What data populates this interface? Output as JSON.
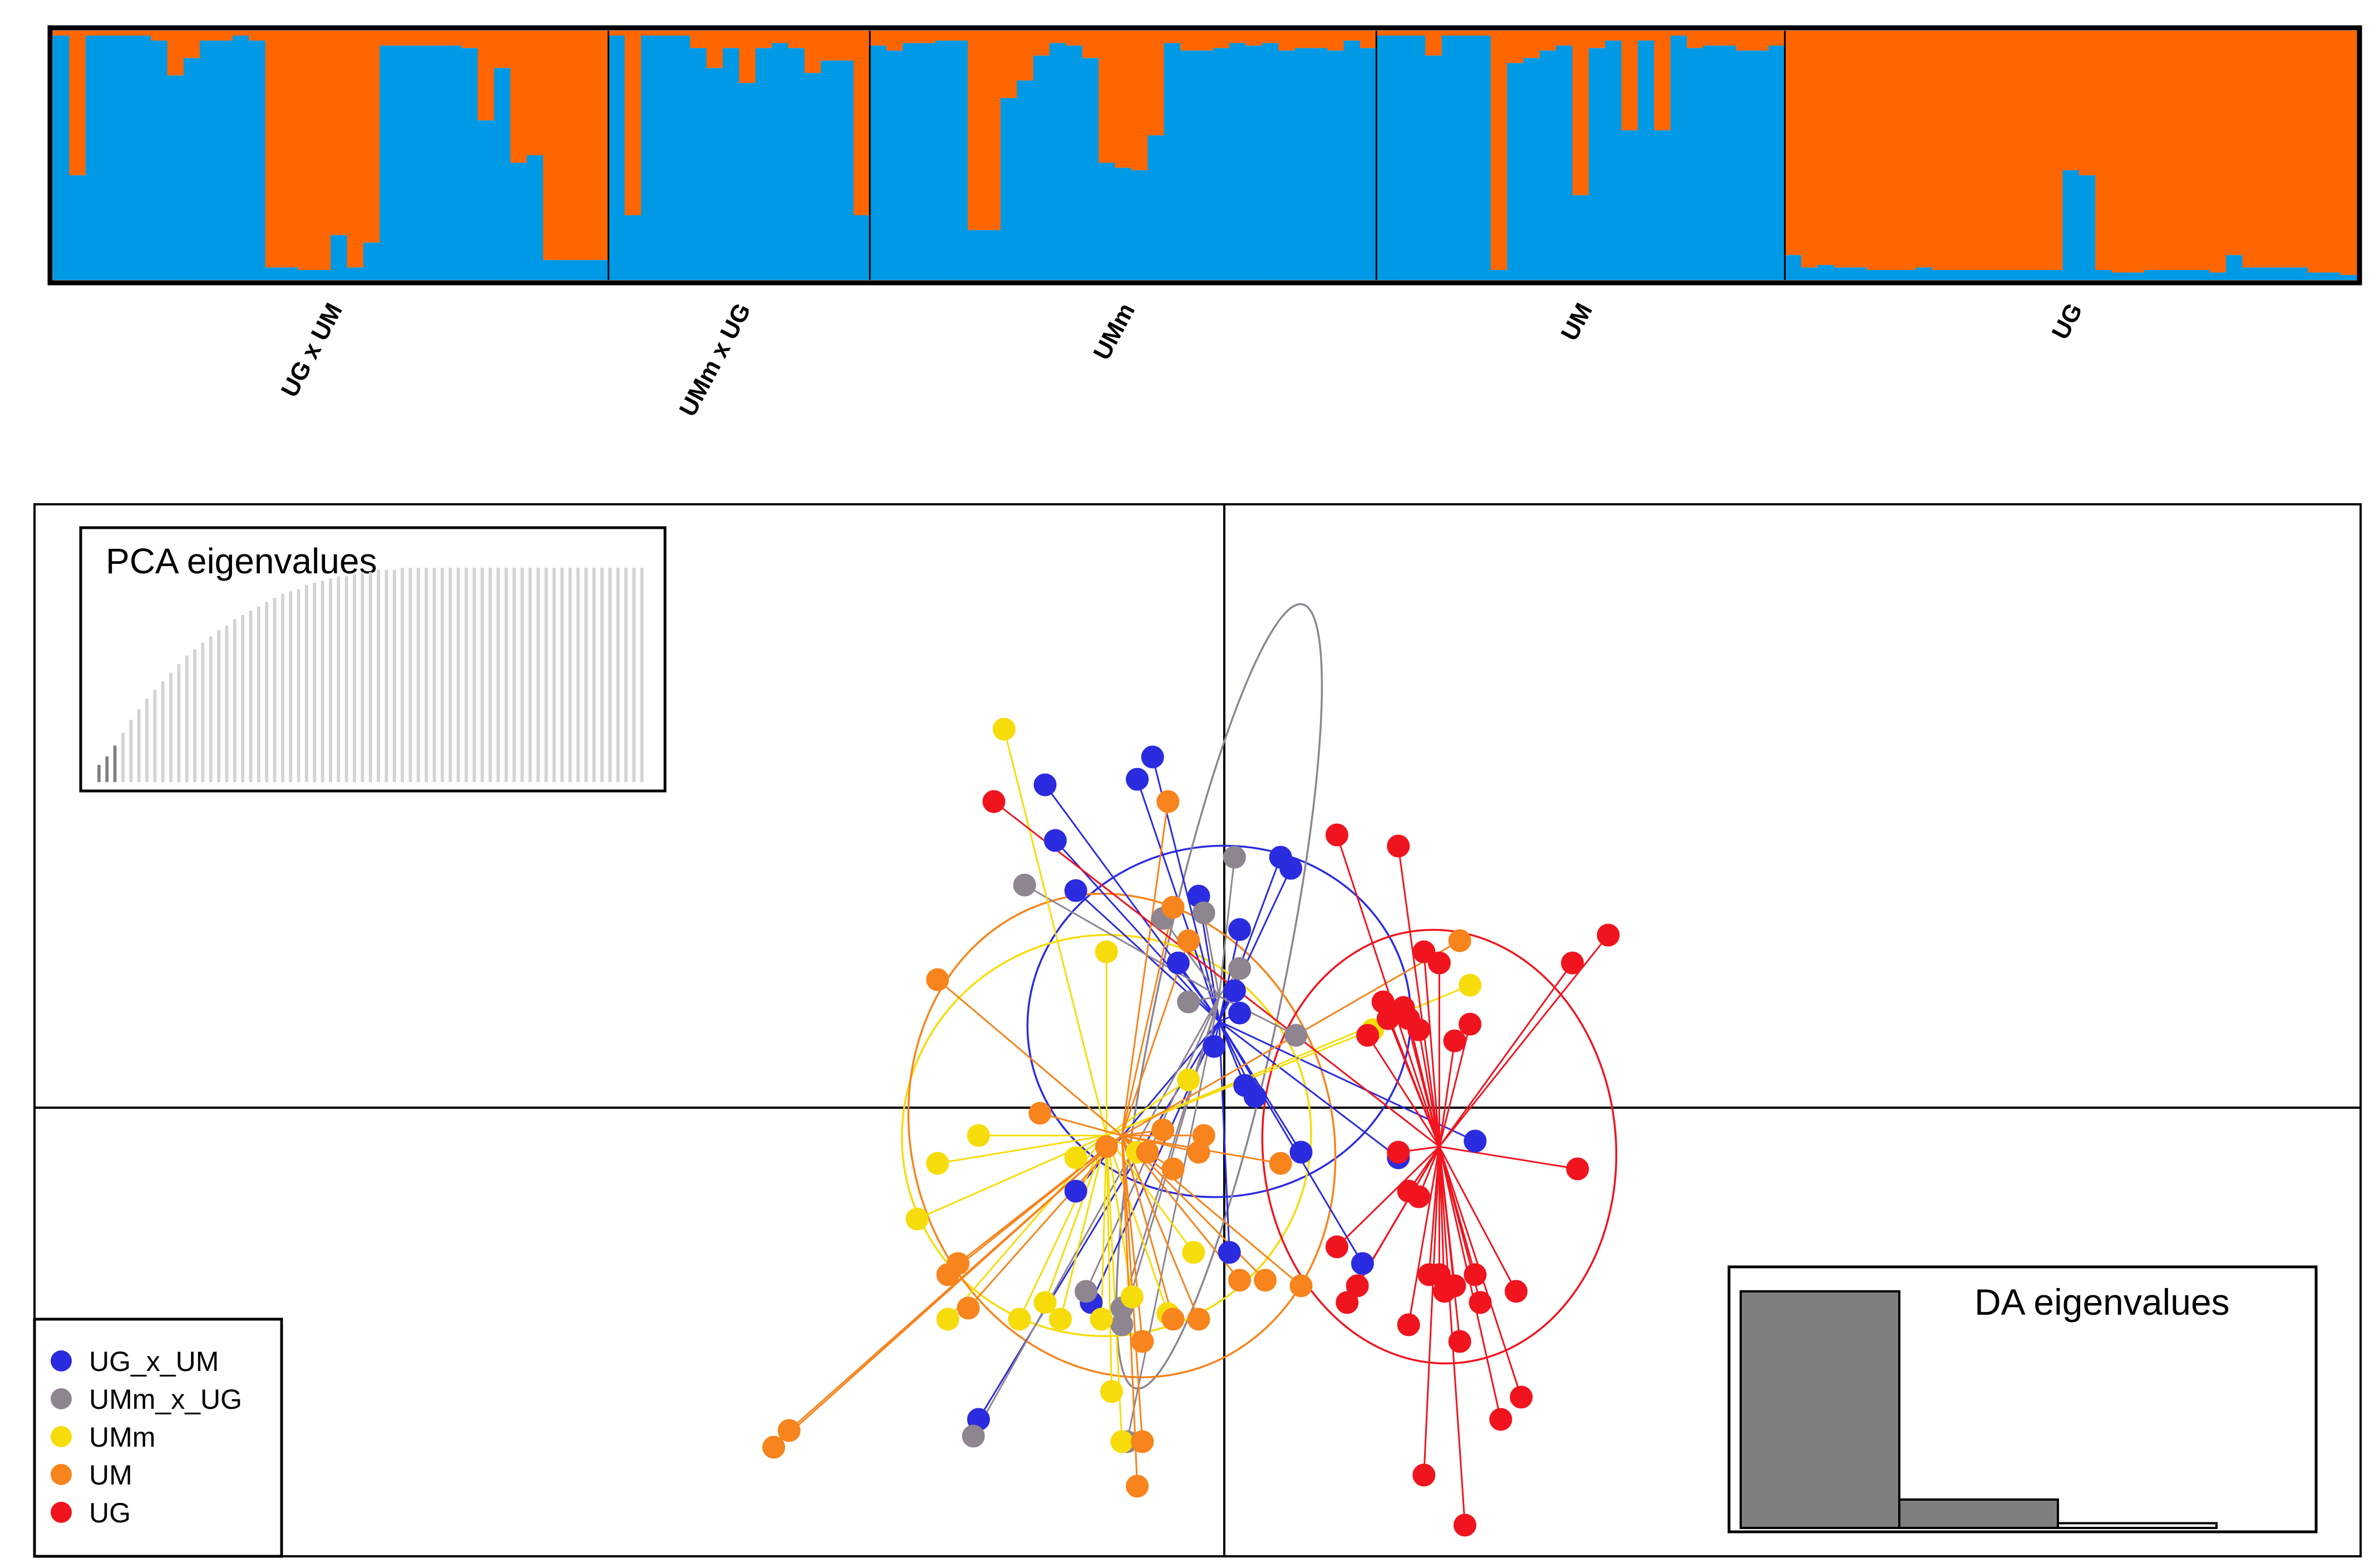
{
  "colors": {
    "cluster_blue": "#0099E6",
    "cluster_orange": "#FF6600",
    "UG_x_UM": "#2B2BE0",
    "UMm_x_UG": "#8E8591",
    "UMm": "#F7DC0B",
    "UM": "#F7841C",
    "UG": "#F0141E",
    "eig_dark": "#7F7F7F",
    "eig_light": "#D3D3D3"
  },
  "chart_data": [
    {
      "type": "bar",
      "subtype": "stacked-admixture",
      "title": "",
      "series": [
        {
          "name": "cluster 1",
          "color_key": "cluster_blue"
        },
        {
          "name": "cluster 2",
          "color_key": "cluster_orange"
        }
      ],
      "ylim": [
        0,
        1
      ],
      "groups": [
        {
          "label": "UG x UM",
          "values": [
            0.98,
            0.42,
            0.98,
            0.98,
            0.98,
            0.98,
            0.96,
            0.82,
            0.89,
            0.96,
            0.96,
            0.98,
            0.96,
            0.05,
            0.05,
            0.04,
            0.04,
            0.18,
            0.05,
            0.15,
            0.94,
            0.94,
            0.94,
            0.94,
            0.94,
            0.93,
            0.64,
            0.85,
            0.47,
            0.5,
            0.08,
            0.08,
            0.08,
            0.08
          ]
        },
        {
          "label": "UMm x UG",
          "values": [
            0.98,
            0.26,
            0.98,
            0.98,
            0.98,
            0.93,
            0.85,
            0.93,
            0.79,
            0.93,
            0.95,
            0.93,
            0.83,
            0.88,
            0.88,
            0.26
          ]
        },
        {
          "label": "UMm",
          "values": [
            0.94,
            0.92,
            0.95,
            0.95,
            0.96,
            0.96,
            0.2,
            0.2,
            0.73,
            0.8,
            0.9,
            0.95,
            0.94,
            0.89,
            0.47,
            0.45,
            0.44,
            0.58,
            0.95,
            0.92,
            0.92,
            0.93,
            0.95,
            0.94,
            0.95,
            0.92,
            0.93,
            0.93,
            0.92,
            0.96,
            0.93
          ]
        },
        {
          "label": "UM",
          "values": [
            0.98,
            0.98,
            0.98,
            0.9,
            0.98,
            0.98,
            0.98,
            0.04,
            0.87,
            0.89,
            0.92,
            0.94,
            0.34,
            0.93,
            0.96,
            0.6,
            0.96,
            0.6,
            0.98,
            0.93,
            0.94,
            0.94,
            0.92,
            0.92,
            0.94
          ]
        },
        {
          "label": "UG",
          "values": [
            0.1,
            0.05,
            0.06,
            0.05,
            0.05,
            0.04,
            0.04,
            0.04,
            0.05,
            0.04,
            0.04,
            0.04,
            0.04,
            0.04,
            0.04,
            0.04,
            0.04,
            0.44,
            0.42,
            0.04,
            0.03,
            0.03,
            0.04,
            0.04,
            0.04,
            0.04,
            0.03,
            0.1,
            0.05,
            0.05,
            0.05,
            0.05,
            0.03,
            0.03,
            0.02
          ]
        }
      ]
    },
    {
      "type": "scatter",
      "subtype": "DAPC-scatter",
      "title": "",
      "xlim": [
        -15,
        15
      ],
      "ylim": [
        -12,
        8
      ],
      "axes_through_origin": true,
      "legend_position": "bottom-left",
      "groups": [
        {
          "name": "UG_x_UM",
          "color_key": "UG_x_UM",
          "center": [
            -0.1,
            1.55
          ],
          "ellipse": {
            "rx": 3.75,
            "ry": 3.15,
            "angle": -8
          },
          "points": [
            [
              -1.4,
              6.3
            ],
            [
              -1.7,
              5.9
            ],
            [
              -3.5,
              5.8
            ],
            [
              1.1,
              4.5
            ],
            [
              1.3,
              4.3
            ],
            [
              -3.3,
              4.8
            ],
            [
              -2.9,
              3.9
            ],
            [
              -0.5,
              3.8
            ],
            [
              0.3,
              3.2
            ],
            [
              -0.9,
              2.6
            ],
            [
              0.2,
              2.1
            ],
            [
              0.3,
              1.7
            ],
            [
              -0.2,
              1.1
            ],
            [
              0.4,
              0.4
            ],
            [
              0.6,
              0.2
            ],
            [
              1.5,
              -0.8
            ],
            [
              3.4,
              -0.9
            ],
            [
              -2.9,
              -1.5
            ],
            [
              -2.6,
              -3.5
            ],
            [
              2.7,
              -2.8
            ],
            [
              0.1,
              -2.6
            ],
            [
              -4.8,
              -5.6
            ],
            [
              4.9,
              -0.6
            ]
          ]
        },
        {
          "name": "UMm_x_UG",
          "color_key": "UMm_x_UG",
          "center": [
            -0.1,
            2.0
          ],
          "ellipse": {
            "rx": 1.2,
            "ry": 7.2,
            "angle": 12
          },
          "points": [
            [
              0.2,
              4.5
            ],
            [
              -3.9,
              4.0
            ],
            [
              -1.2,
              3.4
            ],
            [
              -0.4,
              3.5
            ],
            [
              0.3,
              2.5
            ],
            [
              -0.7,
              1.9
            ],
            [
              1.4,
              1.3
            ],
            [
              -2.7,
              -3.3
            ],
            [
              -2.0,
              -3.6
            ],
            [
              -2.0,
              -3.9
            ],
            [
              -1.9,
              -6.0
            ],
            [
              -4.9,
              -5.9
            ]
          ]
        },
        {
          "name": "UMm",
          "color_key": "UMm",
          "center": [
            -2.3,
            -0.5
          ],
          "ellipse": {
            "rx": 4.0,
            "ry": 3.6,
            "angle": -12
          },
          "points": [
            [
              -4.3,
              6.8
            ],
            [
              -2.3,
              2.8
            ],
            [
              4.8,
              2.2
            ],
            [
              2.9,
              1.4
            ],
            [
              -0.7,
              0.5
            ],
            [
              -4.8,
              -0.5
            ],
            [
              -2.9,
              -0.9
            ],
            [
              -1.7,
              -0.8
            ],
            [
              -5.6,
              -1.0
            ],
            [
              -6.0,
              -2.0
            ],
            [
              -0.6,
              -2.6
            ],
            [
              -5.4,
              -3.8
            ],
            [
              -4.0,
              -3.8
            ],
            [
              -3.5,
              -3.5
            ],
            [
              -3.2,
              -3.8
            ],
            [
              -1.8,
              -3.4
            ],
            [
              -2.4,
              -3.8
            ],
            [
              -1.1,
              -3.7
            ],
            [
              -2.2,
              -5.1
            ],
            [
              -2.0,
              -6.0
            ]
          ]
        },
        {
          "name": "UM",
          "color_key": "UM",
          "center": [
            -2.0,
            -0.5
          ],
          "ellipse": {
            "rx": 4.1,
            "ry": 4.4,
            "angle": -18
          },
          "points": [
            [
              -1.1,
              5.5
            ],
            [
              -1.0,
              3.6
            ],
            [
              -0.7,
              3.0
            ],
            [
              4.6,
              3.0
            ],
            [
              -5.6,
              2.3
            ],
            [
              -3.6,
              -0.1
            ],
            [
              -1.2,
              -0.4
            ],
            [
              -1.5,
              -0.8
            ],
            [
              -1.0,
              -1.1
            ],
            [
              -0.4,
              -0.5
            ],
            [
              -0.5,
              -0.8
            ],
            [
              -2.3,
              -0.7
            ],
            [
              1.1,
              -1.0
            ],
            [
              -5.2,
              -2.8
            ],
            [
              -5.4,
              -3.0
            ],
            [
              -5.0,
              -3.6
            ],
            [
              -1.0,
              -3.8
            ],
            [
              -0.5,
              -3.8
            ],
            [
              0.3,
              -3.1
            ],
            [
              0.8,
              -3.1
            ],
            [
              1.5,
              -3.2
            ],
            [
              -1.6,
              -4.2
            ],
            [
              -1.6,
              -6.0
            ],
            [
              -1.7,
              -6.8
            ],
            [
              -8.5,
              -5.8
            ],
            [
              -8.8,
              -6.1
            ]
          ]
        },
        {
          "name": "UG",
          "color_key": "UG",
          "center": [
            4.2,
            -0.7
          ],
          "ellipse": {
            "rx": 3.45,
            "ry": 3.9,
            "angle": -5
          },
          "points": [
            [
              -4.5,
              5.5
            ],
            [
              2.2,
              4.9
            ],
            [
              3.4,
              4.7
            ],
            [
              7.5,
              3.1
            ],
            [
              6.8,
              2.6
            ],
            [
              2.8,
              1.3
            ],
            [
              3.6,
              1.6
            ],
            [
              4.8,
              1.5
            ],
            [
              3.9,
              2.8
            ],
            [
              4.2,
              2.6
            ],
            [
              3.1,
              1.9
            ],
            [
              3.2,
              1.6
            ],
            [
              3.5,
              1.8
            ],
            [
              3.8,
              1.4
            ],
            [
              4.5,
              1.2
            ],
            [
              6.9,
              -1.1
            ],
            [
              3.4,
              -0.8
            ],
            [
              3.6,
              -1.5
            ],
            [
              3.8,
              -1.6
            ],
            [
              2.2,
              -2.5
            ],
            [
              2.6,
              -3.2
            ],
            [
              2.4,
              -3.5
            ],
            [
              4.5,
              -3.2
            ],
            [
              4.9,
              -3.0
            ],
            [
              5.0,
              -3.5
            ],
            [
              4.2,
              -3.0
            ],
            [
              4.0,
              -3.0
            ],
            [
              4.3,
              -3.3
            ],
            [
              5.7,
              -3.3
            ],
            [
              3.6,
              -3.9
            ],
            [
              4.6,
              -4.2
            ],
            [
              5.8,
              -5.2
            ],
            [
              5.4,
              -5.6
            ],
            [
              3.9,
              -6.6
            ],
            [
              4.7,
              -7.5
            ]
          ]
        }
      ]
    },
    {
      "type": "bar",
      "title": "PCA eigenvalues",
      "n_retained": 3,
      "values": [
        0.08,
        0.12,
        0.17,
        0.23,
        0.29,
        0.34,
        0.39,
        0.43,
        0.47,
        0.51,
        0.55,
        0.59,
        0.62,
        0.65,
        0.68,
        0.71,
        0.73,
        0.76,
        0.78,
        0.8,
        0.82,
        0.84,
        0.86,
        0.88,
        0.89,
        0.9,
        0.92,
        0.93,
        0.94,
        0.95,
        0.96,
        0.96,
        0.97,
        0.98,
        0.98,
        0.99,
        0.99,
        0.99,
        1,
        1,
        1,
        1,
        1,
        1,
        1,
        1,
        1,
        1,
        1,
        1,
        1,
        1,
        1,
        1,
        1,
        1,
        1,
        1,
        1,
        1,
        1,
        1,
        1,
        1,
        1,
        1,
        1,
        1,
        1
      ],
      "legend_position": "top-left"
    },
    {
      "type": "bar",
      "title": "DA eigenvalues",
      "values": [
        1.0,
        0.12,
        0.02
      ],
      "legend_position": "bottom-right"
    }
  ],
  "legend": {
    "items": [
      {
        "label": "UG_x_UM",
        "color_key": "UG_x_UM"
      },
      {
        "label": "UMm_x_UG",
        "color_key": "UMm_x_UG"
      },
      {
        "label": "UMm",
        "color_key": "UMm"
      },
      {
        "label": "UM",
        "color_key": "UM"
      },
      {
        "label": "UG",
        "color_key": "UG"
      }
    ]
  }
}
